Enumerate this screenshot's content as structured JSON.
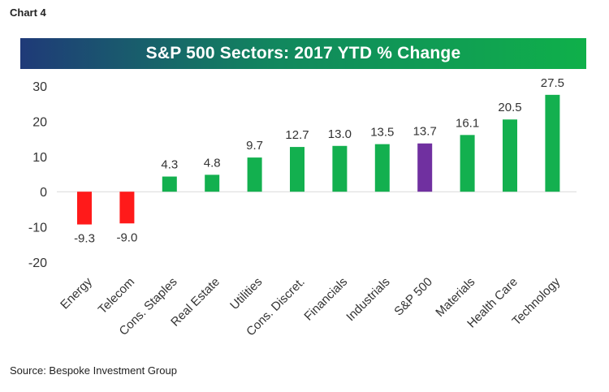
{
  "header": {
    "chart_label": "Chart 4"
  },
  "footer": {
    "source": "Source: Bespoke Investment Group"
  },
  "chart_data": {
    "type": "bar",
    "title": "S&P 500 Sectors: 2017 YTD % Change",
    "xlabel": "",
    "ylabel": "",
    "ylim": [
      -20,
      30
    ],
    "yticks": [
      30,
      20,
      10,
      0,
      -10,
      -20
    ],
    "grid": false,
    "categories": [
      "Energy",
      "Telecom",
      "Cons. Staples",
      "Real Estate",
      "Utilities",
      "Cons. Discret.",
      "Financials",
      "Industrials",
      "S&P 500",
      "Materials",
      "Health Care",
      "Technology"
    ],
    "values": [
      -9.3,
      -9.0,
      4.3,
      4.8,
      9.7,
      12.7,
      13.0,
      13.5,
      13.7,
      16.1,
      20.5,
      27.5
    ],
    "value_labels": [
      "-9.3",
      "-9.0",
      "4.3",
      "4.8",
      "9.7",
      "12.7",
      "13.0",
      "13.5",
      "13.7",
      "16.1",
      "20.5",
      "27.5"
    ],
    "colors": {
      "negative": "#ff1a1a",
      "positive": "#13b04f",
      "benchmark": "#7030a0"
    },
    "benchmark_category": "S&P 500"
  }
}
